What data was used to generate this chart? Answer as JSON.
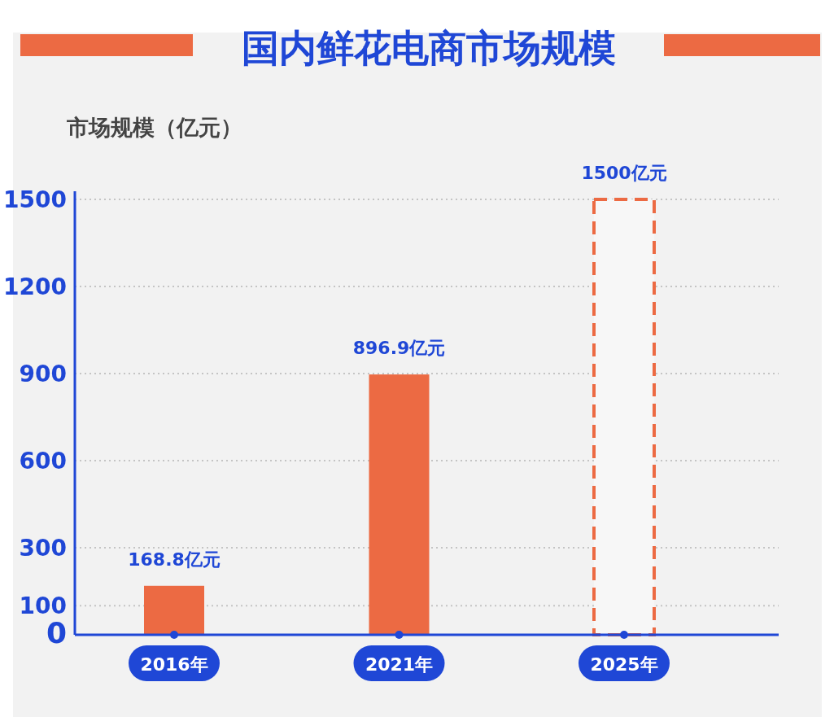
{
  "chart_data": {
    "type": "bar",
    "title": "国内鲜花电商市场规模",
    "ylabel": "市场规模（亿元）",
    "categories": [
      "2016年",
      "2021年",
      "2025年"
    ],
    "series": [
      {
        "color": "#ec6a43",
        "line_style": "solid",
        "values": [
          168.8,
          896.9,
          null
        ],
        "value_labels": [
          "168.8亿元",
          "896.9亿元",
          null
        ]
      },
      {
        "color": "#ec6a43",
        "line_style": "dashed",
        "values": [
          null,
          null,
          1500
        ],
        "value_labels": [
          null,
          null,
          "1500亿元"
        ]
      }
    ],
    "ylim": [
      0,
      1500
    ],
    "yticks": [
      0,
      100,
      300,
      600,
      900,
      1200,
      1500
    ],
    "grid": "y"
  }
}
